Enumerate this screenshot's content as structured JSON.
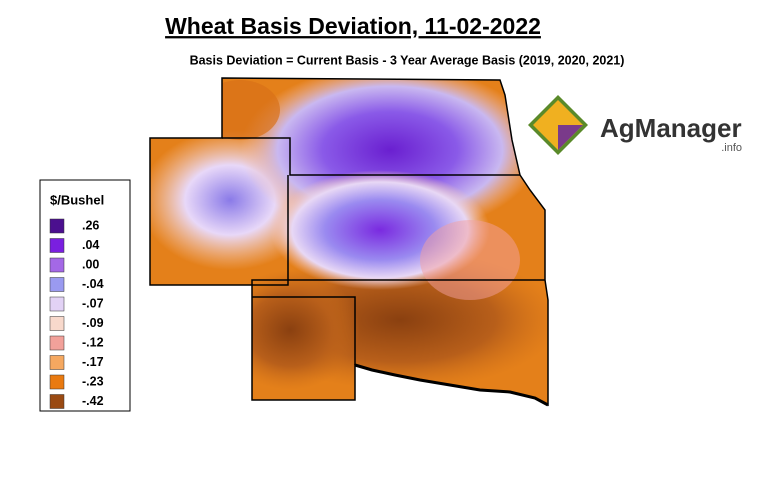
{
  "title": "Wheat Basis Deviation, 11-02-2022",
  "subtitle": "Basis Deviation = Current Basis - 3 Year Average Basis (2019, 2020, 2021)",
  "legend": {
    "title": "$/Bushel",
    "items": [
      {
        "label": ".26",
        "color": "#4b0f8f"
      },
      {
        "label": ".04",
        "color": "#7a1fe0"
      },
      {
        "label": ".00",
        "color": "#a468e6"
      },
      {
        "label": "-.04",
        "color": "#9a9af0"
      },
      {
        "label": "-.07",
        "color": "#e2d2f5"
      },
      {
        "label": "-.09",
        "color": "#f8d9cc"
      },
      {
        "label": "-.12",
        "color": "#f2a19a"
      },
      {
        "label": "-.17",
        "color": "#f5a860"
      },
      {
        "label": "-.23",
        "color": "#e97a10"
      },
      {
        "label": "-.42",
        "color": "#9a4a12"
      }
    ]
  },
  "logo": {
    "name": "AgManager",
    "suffix": ".info"
  }
}
